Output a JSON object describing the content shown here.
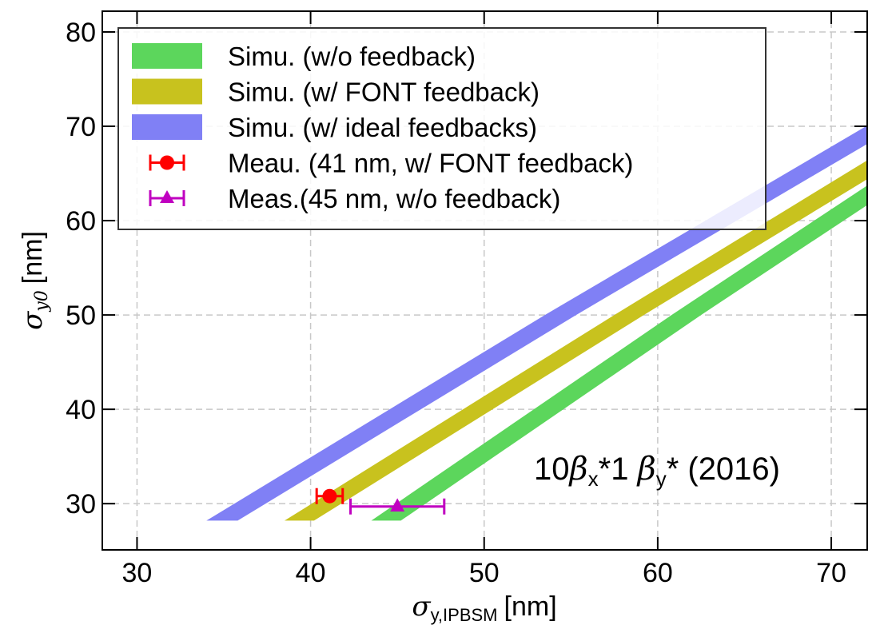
{
  "chart_data": {
    "type": "band",
    "xlim": [
      28,
      72.07
    ],
    "ylim": [
      25.1,
      82.2
    ],
    "xticks": [
      30,
      40,
      50,
      60,
      70
    ],
    "yticks": [
      30,
      40,
      50,
      60,
      70,
      80
    ],
    "grid": true,
    "legend": "upper left",
    "xlabel_parts": [
      "σ",
      "y,IPBSM",
      "[nm]"
    ],
    "ylabel_parts": [
      "σ",
      "y0",
      "[nm]"
    ],
    "annotation_parts": [
      "10",
      "β",
      "x",
      "*1 ",
      "β",
      "y",
      "* (2016)"
    ],
    "series": [
      {
        "name": "Simu. (w/o feedback)",
        "color": "#5cd65c",
        "kind": "band",
        "y": [
          28.2,
          50,
          64
        ],
        "x_low": [
          43.5,
          60.8,
          72.3
        ],
        "x_high": [
          45.2,
          62.5,
          74.0
        ]
      },
      {
        "name": "Simu. (w/ FONT feedback)",
        "color": "#c8c21e",
        "kind": "band",
        "y": [
          28.2,
          50,
          68
        ],
        "x_low": [
          38.5,
          57.5,
          73.5
        ],
        "x_high": [
          40.2,
          59.2,
          75.3
        ]
      },
      {
        "name": "Simu. (w/ ideal feedbacks)",
        "color": "#8080f5",
        "kind": "band",
        "y": [
          28.2,
          50,
          70
        ],
        "x_low": [
          34.0,
          53.5,
          72.0
        ],
        "x_high": [
          35.8,
          55.3,
          73.8
        ]
      },
      {
        "name": "Meau. (41 nm, w/ FONT feedback)",
        "color": "#ff0000",
        "kind": "errorbar",
        "marker": "circle",
        "x": [
          41.1
        ],
        "y": [
          30.8
        ],
        "xerr": [
          0.75
        ]
      },
      {
        "name": "Meas.(45 nm, w/o feedback)",
        "color": "#c000c0",
        "kind": "errorbar",
        "marker": "triangle",
        "x": [
          45.0
        ],
        "y": [
          29.7
        ],
        "xerr": [
          2.7
        ]
      }
    ]
  }
}
